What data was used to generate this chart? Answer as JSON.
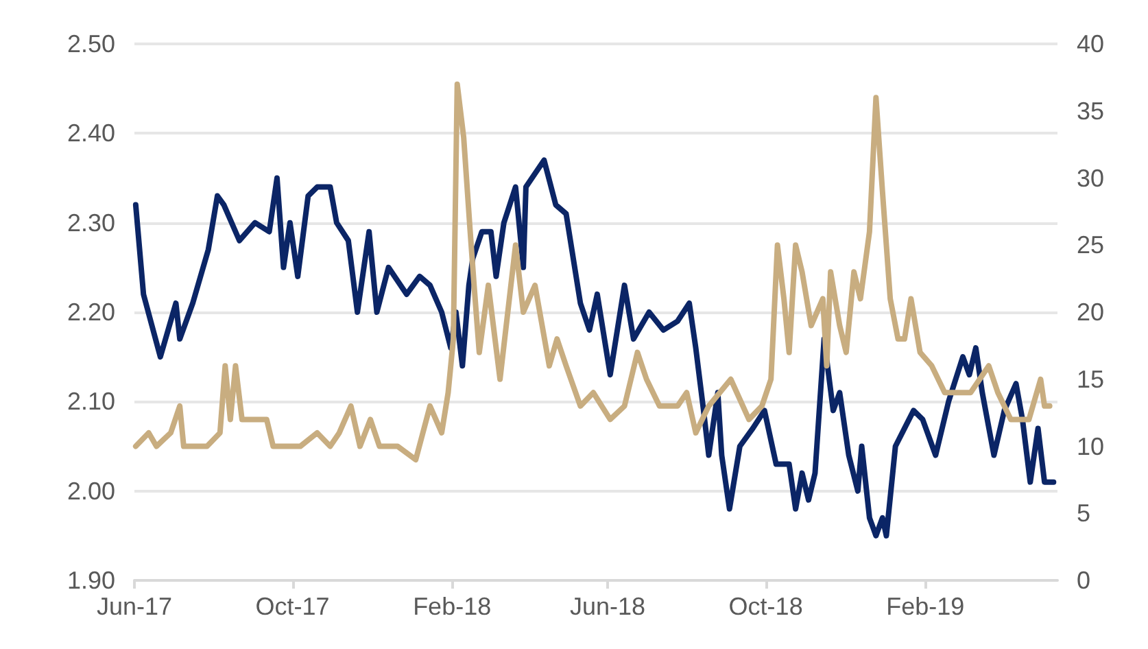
{
  "chart_data": {
    "type": "line",
    "ylim": [
      1.9,
      2.5
    ],
    "yticks": [
      {
        "value": 1.9,
        "label": "1.90"
      },
      {
        "value": 2.0,
        "label": "2.00"
      },
      {
        "value": 2.1,
        "label": "2.10"
      },
      {
        "value": 2.2,
        "label": "2.20"
      },
      {
        "value": 2.3,
        "label": "2.30"
      },
      {
        "value": 2.4,
        "label": "2.40"
      },
      {
        "value": 2.5,
        "label": "2.50"
      }
    ],
    "y2lim": [
      0,
      40
    ],
    "y2ticks": [
      0,
      5,
      10,
      15,
      20,
      25,
      30,
      35,
      40
    ],
    "xlim": [
      "2017-06-01",
      "2019-05-14"
    ],
    "xticks": [
      {
        "value": "2017-06-01",
        "label": "Jun-17"
      },
      {
        "value": "2017-10-01",
        "label": "Oct-17"
      },
      {
        "value": "2018-02-01",
        "label": "Feb-18"
      },
      {
        "value": "2018-06-01",
        "label": "Jun-18"
      },
      {
        "value": "2018-10-01",
        "label": "Oct-18"
      },
      {
        "value": "2019-02-01",
        "label": "Feb-19"
      }
    ],
    "grid": "y",
    "marker": "none",
    "line_style": "solid",
    "series": [
      {
        "color": "#0b2566",
        "x": [
          "2017-06-02",
          "2017-06-08",
          "2017-06-21",
          "2017-07-03",
          "2017-07-06",
          "2017-07-16",
          "2017-07-28",
          "2017-08-04",
          "2017-08-09",
          "2017-08-21",
          "2017-09-02",
          "2017-09-13",
          "2017-09-19",
          "2017-09-24",
          "2017-09-29",
          "2017-10-05",
          "2017-10-13",
          "2017-10-20",
          "2017-10-30",
          "2017-11-04",
          "2017-11-13",
          "2017-11-20",
          "2017-11-29",
          "2017-12-05",
          "2017-12-14",
          "2017-12-28",
          "2018-01-07",
          "2018-01-15",
          "2018-01-24",
          "2018-01-31",
          "2018-02-04",
          "2018-02-09",
          "2018-02-14",
          "2018-02-17",
          "2018-02-24",
          "2018-03-03",
          "2018-03-07",
          "2018-03-13",
          "2018-03-22",
          "2018-03-28",
          "2018-03-30",
          "2018-04-13",
          "2018-04-22",
          "2018-04-30",
          "2018-05-11",
          "2018-05-18",
          "2018-05-24",
          "2018-06-03",
          "2018-06-14",
          "2018-06-21",
          "2018-07-03",
          "2018-07-14",
          "2018-07-25",
          "2018-08-03",
          "2018-08-08",
          "2018-08-14",
          "2018-08-18",
          "2018-08-25",
          "2018-08-28",
          "2018-09-03",
          "2018-09-11",
          "2018-09-21",
          "2018-09-30",
          "2018-10-09",
          "2018-10-19",
          "2018-10-24",
          "2018-10-29",
          "2018-11-03",
          "2018-11-08",
          "2018-11-15",
          "2018-11-22",
          "2018-11-27",
          "2018-12-04",
          "2018-12-11",
          "2018-12-14",
          "2018-12-20",
          "2018-12-25",
          "2018-12-30",
          "2019-01-02",
          "2019-01-09",
          "2019-01-16",
          "2019-01-23",
          "2019-01-30",
          "2019-02-09",
          "2019-02-19",
          "2019-03-02",
          "2019-03-07",
          "2019-03-12",
          "2019-03-17",
          "2019-03-26",
          "2019-04-03",
          "2019-04-12",
          "2019-04-17",
          "2019-04-23",
          "2019-04-29",
          "2019-05-04",
          "2019-05-11"
        ],
        "values": [
          2.32,
          2.22,
          2.15,
          2.21,
          2.17,
          2.21,
          2.27,
          2.33,
          2.32,
          2.28,
          2.3,
          2.29,
          2.35,
          2.25,
          2.3,
          2.24,
          2.33,
          2.34,
          2.34,
          2.3,
          2.28,
          2.2,
          2.29,
          2.2,
          2.25,
          2.22,
          2.24,
          2.23,
          2.2,
          2.16,
          2.2,
          2.14,
          2.23,
          2.26,
          2.29,
          2.29,
          2.24,
          2.3,
          2.34,
          2.25,
          2.34,
          2.37,
          2.32,
          2.31,
          2.21,
          2.18,
          2.22,
          2.13,
          2.23,
          2.17,
          2.2,
          2.18,
          2.19,
          2.21,
          2.16,
          2.09,
          2.04,
          2.11,
          2.04,
          1.98,
          2.05,
          2.07,
          2.09,
          2.03,
          2.03,
          1.98,
          2.02,
          1.99,
          2.02,
          2.17,
          2.09,
          2.11,
          2.04,
          2.0,
          2.05,
          1.97,
          1.95,
          1.97,
          1.95,
          2.05,
          2.07,
          2.09,
          2.08,
          2.04,
          2.1,
          2.15,
          2.13,
          2.16,
          2.11,
          2.04,
          2.09,
          2.12,
          2.08,
          2.01,
          2.07,
          2.01,
          2.01
        ]
      },
      {
        "color": "#c8ad80",
        "axis": "y2",
        "x": [
          "2017-06-02",
          "2017-06-12",
          "2017-06-18",
          "2017-06-29",
          "2017-07-06",
          "2017-07-09",
          "2017-07-16",
          "2017-07-27",
          "2017-08-06",
          "2017-08-10",
          "2017-08-14",
          "2017-08-18",
          "2017-08-23",
          "2017-09-02",
          "2017-09-11",
          "2017-09-16",
          "2017-09-26",
          "2017-10-07",
          "2017-10-20",
          "2017-10-30",
          "2017-11-06",
          "2017-11-15",
          "2017-11-22",
          "2017-11-30",
          "2017-12-07",
          "2017-12-21",
          "2018-01-04",
          "2018-01-15",
          "2018-01-24",
          "2018-01-29",
          "2018-02-02",
          "2018-02-05",
          "2018-02-10",
          "2018-02-15",
          "2018-02-18",
          "2018-02-22",
          "2018-03-01",
          "2018-03-10",
          "2018-03-22",
          "2018-03-28",
          "2018-04-06",
          "2018-04-17",
          "2018-04-23",
          "2018-04-30",
          "2018-05-11",
          "2018-05-21",
          "2018-06-03",
          "2018-06-14",
          "2018-06-24",
          "2018-07-01",
          "2018-07-11",
          "2018-07-25",
          "2018-08-01",
          "2018-08-08",
          "2018-08-18",
          "2018-09-04",
          "2018-09-18",
          "2018-09-28",
          "2018-10-05",
          "2018-10-10",
          "2018-10-15",
          "2018-10-19",
          "2018-10-24",
          "2018-10-29",
          "2018-11-05",
          "2018-11-14",
          "2018-11-17",
          "2018-11-20",
          "2018-11-27",
          "2018-12-02",
          "2018-12-08",
          "2018-12-13",
          "2018-12-20",
          "2018-12-25",
          "2018-12-30",
          "2019-01-05",
          "2019-01-11",
          "2019-01-16",
          "2019-01-21",
          "2019-01-28",
          "2019-02-06",
          "2019-02-16",
          "2019-02-26",
          "2019-03-08",
          "2019-03-22",
          "2019-03-29",
          "2019-04-08",
          "2019-04-22",
          "2019-05-01",
          "2019-05-04",
          "2019-05-08"
        ],
        "values": [
          10,
          11,
          10,
          11,
          13,
          10,
          10,
          10,
          11,
          16,
          12,
          16,
          12,
          12,
          12,
          10,
          10,
          10,
          11,
          10,
          11,
          13,
          10,
          12,
          10,
          10,
          9,
          13,
          11,
          14,
          18,
          37,
          33,
          26,
          22,
          17,
          22,
          15,
          25,
          20,
          22,
          16,
          18,
          16,
          13,
          14,
          12,
          13,
          17,
          15,
          13,
          13,
          14,
          11,
          13,
          15,
          12,
          13,
          15,
          25,
          21,
          17,
          25,
          23,
          19,
          21,
          16,
          23,
          19,
          17,
          23,
          21,
          26,
          36,
          29,
          21,
          18,
          18,
          21,
          17,
          16,
          14,
          14,
          14,
          16,
          14,
          12,
          12,
          15,
          13,
          13
        ]
      }
    ]
  }
}
